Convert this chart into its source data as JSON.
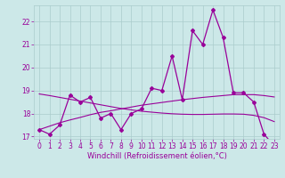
{
  "title": "",
  "xlabel": "Windchill (Refroidissement éolien,°C)",
  "ylabel": "",
  "background_color": "#cce8e8",
  "line_color": "#990099",
  "grid_color": "#aacccc",
  "x_hours": [
    0,
    1,
    2,
    3,
    4,
    5,
    6,
    7,
    8,
    9,
    10,
    11,
    12,
    13,
    14,
    15,
    16,
    17,
    18,
    19,
    20,
    21,
    22,
    23
  ],
  "y_main": [
    17.3,
    17.1,
    17.5,
    18.8,
    18.5,
    18.7,
    17.8,
    18.0,
    17.3,
    18.0,
    18.2,
    19.1,
    19.0,
    20.5,
    18.6,
    21.6,
    21.0,
    22.5,
    21.3,
    18.9,
    18.9,
    18.5,
    17.1,
    16.6
  ],
  "y_trend1": [
    17.3,
    17.45,
    17.6,
    17.72,
    17.83,
    17.95,
    18.05,
    18.12,
    18.2,
    18.28,
    18.36,
    18.42,
    18.48,
    18.54,
    18.6,
    18.65,
    18.7,
    18.74,
    18.78,
    18.82,
    18.82,
    18.82,
    18.78,
    18.72
  ],
  "y_trend2": [
    18.85,
    18.78,
    18.7,
    18.62,
    18.54,
    18.46,
    18.38,
    18.3,
    18.22,
    18.16,
    18.1,
    18.06,
    18.02,
    17.99,
    17.97,
    17.96,
    17.96,
    17.97,
    17.98,
    17.98,
    17.97,
    17.92,
    17.82,
    17.65
  ],
  "ylim_min": 16.9,
  "ylim_max": 22.7,
  "yticks": [
    17,
    18,
    19,
    20,
    21,
    22
  ],
  "xticks": [
    0,
    1,
    2,
    3,
    4,
    5,
    6,
    7,
    8,
    9,
    10,
    11,
    12,
    13,
    14,
    15,
    16,
    17,
    18,
    19,
    20,
    21,
    22,
    23
  ],
  "tick_fontsize": 5.5,
  "xlabel_fontsize": 6.0
}
